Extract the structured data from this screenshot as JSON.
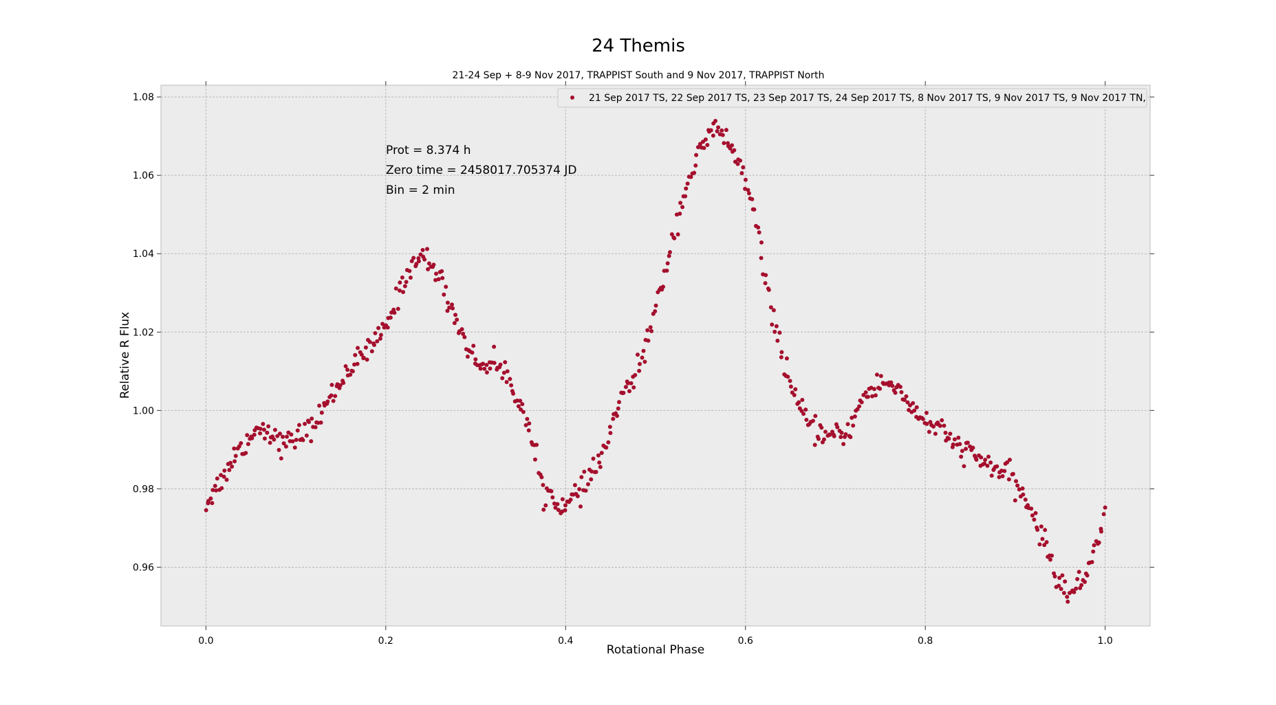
{
  "chart_data": {
    "type": "scatter",
    "title": "24 Themis",
    "subtitle": "21-24 Sep + 8-9 Nov 2017, TRAPPIST South and 9 Nov 2017, TRAPPIST North",
    "xlabel": "Rotational Phase",
    "ylabel": "Relative R Flux",
    "xlim": [
      -0.05,
      1.05
    ],
    "ylim": [
      0.945,
      1.083
    ],
    "x_ticks": [
      0.0,
      0.2,
      0.4,
      0.6,
      0.8,
      1.0
    ],
    "x_tick_labels": [
      "0.0",
      "0.2",
      "0.4",
      "0.6",
      "0.8",
      "1.0"
    ],
    "y_ticks": [
      0.96,
      0.98,
      1.0,
      1.02,
      1.04,
      1.06,
      1.08
    ],
    "y_tick_labels": [
      "0.96",
      "0.98",
      "1.00",
      "1.02",
      "1.04",
      "1.06",
      "1.08"
    ],
    "grid": true,
    "legend_position": "top-right",
    "legend_label": "21 Sep 2017 TS, 22 Sep 2017 TS, 23 Sep 2017 TS, 24 Sep 2017 TS, 8 Nov 2017 TS, 9 Nov 2017 TS, 9 Nov 2017 TN,",
    "annotations": [
      "Prot = 8.374 h",
      "Zero time = 2458017.705374 JD",
      "Bin = 2 min"
    ],
    "colors": {
      "marker": "#a50f2d",
      "plot_background": "#ececec",
      "grid": "#b8b8b8",
      "axes_edge": "#bcbcbc"
    },
    "series": [
      {
        "name": "21 Sep 2017 TS, 22 Sep 2017 TS, 23 Sep 2017 TS, 24 Sep 2017 TS, 8 Nov 2017 TS, 9 Nov 2017 TS, 9 Nov 2017 TN,",
        "shape": {
          "phase": [
            0.0,
            0.01,
            0.02,
            0.03,
            0.045,
            0.06,
            0.075,
            0.085,
            0.1,
            0.12,
            0.14,
            0.16,
            0.18,
            0.2,
            0.215,
            0.23,
            0.245,
            0.26,
            0.28,
            0.3,
            0.32,
            0.335,
            0.35,
            0.365,
            0.375,
            0.39,
            0.4,
            0.41,
            0.42,
            0.44,
            0.46,
            0.48,
            0.5,
            0.52,
            0.535,
            0.55,
            0.565,
            0.58,
            0.595,
            0.61,
            0.625,
            0.64,
            0.655,
            0.67,
            0.685,
            0.7,
            0.715,
            0.73,
            0.75,
            0.77,
            0.79,
            0.81,
            0.83,
            0.85,
            0.87,
            0.89,
            0.91,
            0.93,
            0.945,
            0.96,
            0.975,
            0.99,
            1.0
          ],
          "flux": [
            0.976,
            0.98,
            0.983,
            0.988,
            0.992,
            0.996,
            0.994,
            0.991,
            0.993,
            0.996,
            1.004,
            1.011,
            1.015,
            1.021,
            1.03,
            1.038,
            1.039,
            1.034,
            1.022,
            1.012,
            1.012,
            1.009,
            1.002,
            0.99,
            0.98,
            0.977,
            0.975,
            0.978,
            0.98,
            0.988,
            1.002,
            1.01,
            1.025,
            1.045,
            1.058,
            1.066,
            1.072,
            1.069,
            1.062,
            1.05,
            1.03,
            1.015,
            1.003,
            0.996,
            0.994,
            0.993,
            0.995,
            1.003,
            1.007,
            1.006,
            0.999,
            0.996,
            0.992,
            0.989,
            0.986,
            0.984,
            0.978,
            0.968,
            0.958,
            0.953,
            0.956,
            0.966,
            0.975
          ]
        },
        "n_points": 620,
        "noise_sigma": 0.0015
      }
    ]
  }
}
